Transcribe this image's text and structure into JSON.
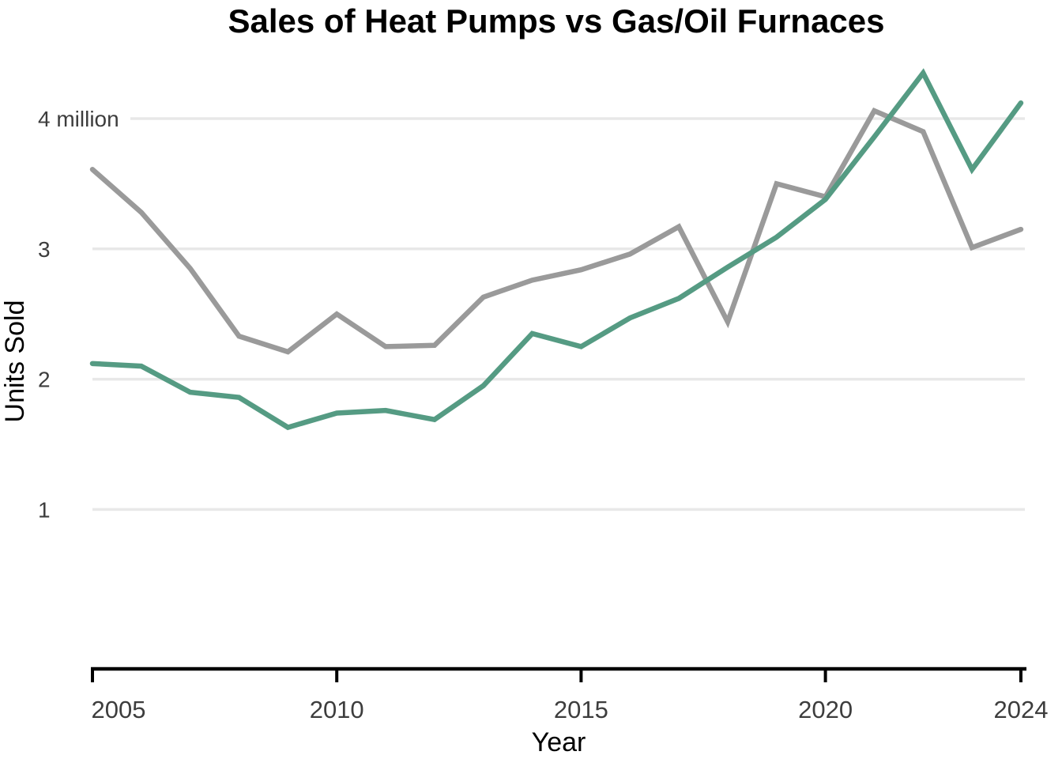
{
  "title": "Sales of Heat Pumps vs Gas/Oil Furnaces",
  "axis_titles": {
    "x": "Year",
    "y": "Units Sold"
  },
  "colors": {
    "heat_pumps_line": "#559b83",
    "furnaces_line": "#9a9a9a",
    "gridline": "#e8e8e8",
    "axis_line": "#000000",
    "tick_label": "#3d3d3d",
    "title_text": "#000000"
  },
  "chart_data": {
    "type": "line",
    "title": "Sales of Heat Pumps vs Gas/Oil Furnaces",
    "xlabel": "Year",
    "ylabel": "Units Sold",
    "x": [
      2005,
      2006,
      2007,
      2008,
      2009,
      2010,
      2011,
      2012,
      2013,
      2014,
      2015,
      2016,
      2017,
      2018,
      2019,
      2020,
      2021,
      2022,
      2023,
      2024
    ],
    "series": [
      {
        "name": "Gas/Oil Furnaces",
        "color": "#9a9a9a",
        "values": [
          3.61,
          3.28,
          2.85,
          2.33,
          2.21,
          2.5,
          2.25,
          2.26,
          2.63,
          2.76,
          2.84,
          2.96,
          3.17,
          2.44,
          3.5,
          3.4,
          4.06,
          3.9,
          3.01,
          3.15
        ]
      },
      {
        "name": "Heat Pumps",
        "color": "#559b83",
        "values": [
          2.12,
          2.1,
          1.9,
          1.86,
          1.63,
          1.74,
          1.76,
          1.69,
          1.95,
          2.35,
          2.25,
          2.47,
          2.62,
          2.86,
          3.09,
          3.38,
          3.86,
          4.35,
          3.61,
          4.12
        ]
      }
    ],
    "x_ticks": [
      {
        "value": 2005,
        "label": "2005"
      },
      {
        "value": 2010,
        "label": "2010"
      },
      {
        "value": 2015,
        "label": "2015"
      },
      {
        "value": 2020,
        "label": "2020"
      },
      {
        "value": 2024,
        "label": "2024"
      }
    ],
    "y_ticks": [
      {
        "value": 4,
        "label": "4 million"
      },
      {
        "value": 3,
        "label": "3"
      },
      {
        "value": 2,
        "label": "2"
      },
      {
        "value": 1,
        "label": "1"
      }
    ],
    "xlim": [
      2005,
      2024
    ],
    "ylim": [
      0,
      4.6
    ],
    "grid": "horizontal-only",
    "legend": "none",
    "units": "million units sold per year"
  }
}
